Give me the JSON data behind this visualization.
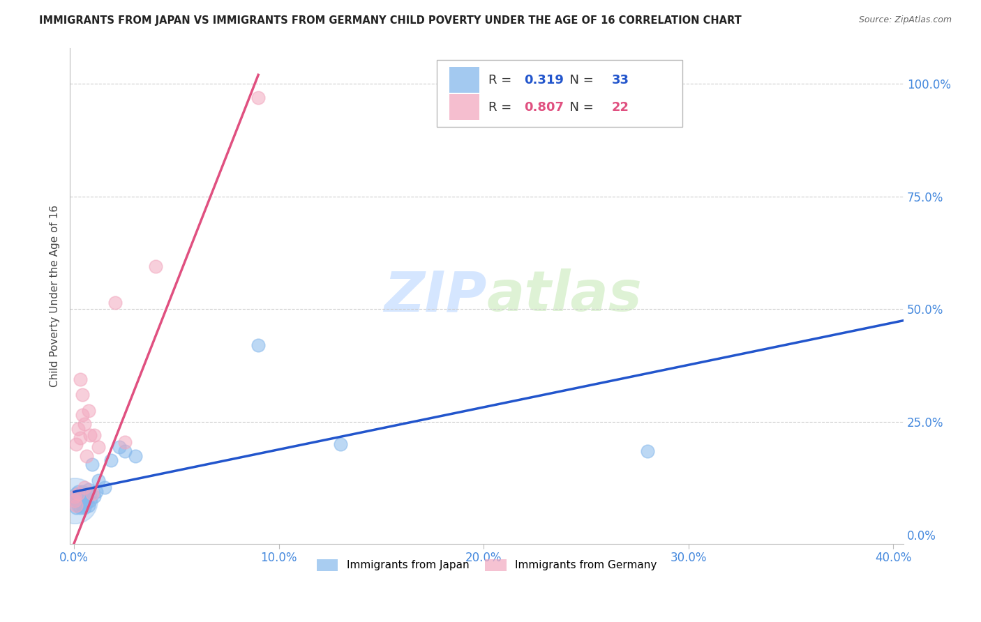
{
  "title": "IMMIGRANTS FROM JAPAN VS IMMIGRANTS FROM GERMANY CHILD POVERTY UNDER THE AGE OF 16 CORRELATION CHART",
  "source": "Source: ZipAtlas.com",
  "ylabel": "Child Poverty Under the Age of 16",
  "xlim": [
    -0.002,
    0.405
  ],
  "ylim": [
    -0.02,
    1.08
  ],
  "xticks": [
    0.0,
    0.1,
    0.2,
    0.3,
    0.4
  ],
  "yticks": [
    0.0,
    0.25,
    0.5,
    0.75,
    1.0
  ],
  "xticklabels": [
    "0.0%",
    "10.0%",
    "20.0%",
    "30.0%",
    "40.0%"
  ],
  "yticklabels": [
    "0.0%",
    "25.0%",
    "50.0%",
    "75.0%",
    "100.0%"
  ],
  "japan_color": "#85B8EC",
  "germany_color": "#F2A8BF",
  "japan_line_color": "#2255CC",
  "germany_line_color": "#E05080",
  "japan_R": "0.319",
  "japan_N": "33",
  "germany_R": "0.807",
  "germany_N": "22",
  "watermark_zip": "ZIP",
  "watermark_atlas": "atlas",
  "background_color": "#FFFFFF",
  "grid_color": "#CCCCCC",
  "japan_scatter_x": [
    0.0005,
    0.001,
    0.001,
    0.0015,
    0.002,
    0.002,
    0.002,
    0.003,
    0.003,
    0.003,
    0.004,
    0.004,
    0.004,
    0.005,
    0.005,
    0.005,
    0.006,
    0.006,
    0.007,
    0.007,
    0.008,
    0.009,
    0.01,
    0.011,
    0.012,
    0.015,
    0.018,
    0.022,
    0.025,
    0.03,
    0.09,
    0.13,
    0.28
  ],
  "japan_scatter_y": [
    0.08,
    0.06,
    0.09,
    0.075,
    0.065,
    0.08,
    0.095,
    0.06,
    0.075,
    0.09,
    0.065,
    0.08,
    0.095,
    0.06,
    0.075,
    0.09,
    0.07,
    0.085,
    0.065,
    0.1,
    0.075,
    0.155,
    0.085,
    0.095,
    0.12,
    0.105,
    0.165,
    0.195,
    0.185,
    0.175,
    0.42,
    0.2,
    0.185
  ],
  "germany_scatter_x": [
    0.0003,
    0.0005,
    0.001,
    0.001,
    0.002,
    0.002,
    0.003,
    0.003,
    0.004,
    0.004,
    0.005,
    0.005,
    0.006,
    0.007,
    0.008,
    0.009,
    0.01,
    0.012,
    0.02,
    0.025,
    0.04,
    0.09
  ],
  "germany_scatter_y": [
    0.075,
    0.085,
    0.065,
    0.2,
    0.09,
    0.235,
    0.215,
    0.345,
    0.31,
    0.265,
    0.105,
    0.245,
    0.175,
    0.275,
    0.22,
    0.09,
    0.22,
    0.195,
    0.515,
    0.205,
    0.595,
    0.97
  ],
  "japan_line_x": [
    0.0,
    0.405
  ],
  "japan_line_y": [
    0.095,
    0.475
  ],
  "germany_line_x": [
    0.0,
    0.09
  ],
  "germany_line_y": [
    -0.02,
    1.02
  ],
  "tick_color": "#4488DD",
  "axis_label_color": "#444444"
}
